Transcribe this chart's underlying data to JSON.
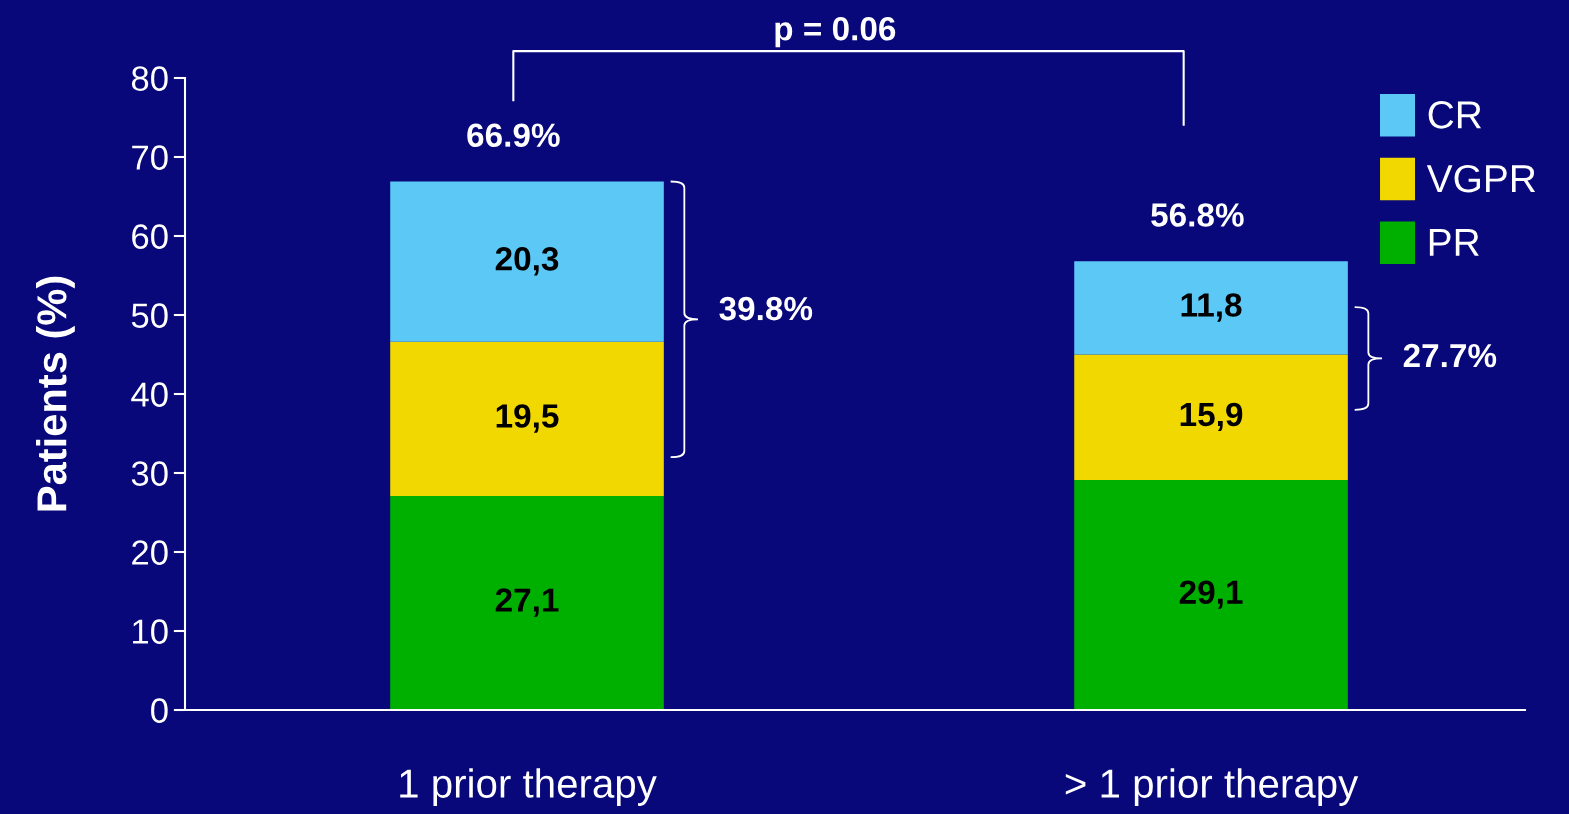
{
  "chart_data": {
    "type": "bar",
    "stacked": true,
    "ylabel": "Patients (%)",
    "categories": [
      "1 prior therapy",
      "> 1 prior therapy"
    ],
    "series": [
      {
        "name": "PR",
        "color": "#00b000",
        "values": [
          27.1,
          29.1
        ],
        "value_labels": [
          "27,1",
          "29,1"
        ]
      },
      {
        "name": "VGPR",
        "color": "#f0d800",
        "values": [
          19.5,
          15.9
        ],
        "value_labels": [
          "19,5",
          "15,9"
        ]
      },
      {
        "name": "CR",
        "color": "#5cc8f5",
        "values": [
          20.3,
          11.8
        ],
        "value_labels": [
          "20,3",
          "11,8"
        ]
      }
    ],
    "totals": [
      "66.9%",
      "56.8%"
    ],
    "ylim": [
      0,
      80
    ],
    "yticks": [
      0,
      10,
      20,
      30,
      40,
      50,
      60,
      70,
      80
    ],
    "grid": false,
    "legend": "top right",
    "annotations": [
      "p = 0.06",
      "39.8%",
      "27.7%"
    ]
  }
}
